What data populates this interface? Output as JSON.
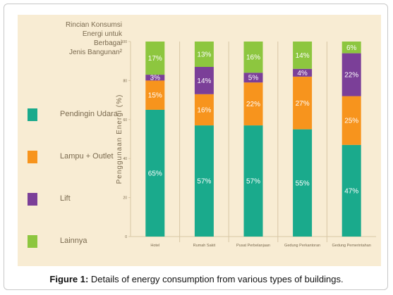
{
  "caption": {
    "label": "Figure 1:",
    "text": " Details of energy consumption from various types of buildings."
  },
  "legend": {
    "title_lines": [
      "Rincian Konsumsi",
      "Energi untuk Berbagai",
      "Jenis Bangunan²"
    ]
  },
  "colors": {
    "panel_bg": "#f8ecd3",
    "axis": "#d8c7a6",
    "text": "#7a6a4f"
  },
  "chart_data": {
    "type": "bar",
    "stacked": true,
    "ylabel": "Penggunaan Energi (%)",
    "ylim": [
      0,
      100
    ],
    "yticks": [
      0,
      20,
      40,
      60,
      80,
      100
    ],
    "categories": [
      "Hotel",
      "Rumah Sakit",
      "Pusat Perbelanjaan",
      "Gedung Perkantoran",
      "Gedung Pemerintahan"
    ],
    "series": [
      {
        "name": "Pendingin Udara",
        "color": "#1aaa8c",
        "values": [
          65,
          57,
          57,
          55,
          47
        ],
        "labels": [
          "65%",
          "57%",
          "57%",
          "55%",
          "47%"
        ]
      },
      {
        "name": "Lampu + Outlet",
        "color": "#f7941d",
        "values": [
          15,
          16,
          22,
          27,
          25
        ],
        "labels": [
          "15%",
          "16%",
          "22%",
          "27%",
          "25%"
        ]
      },
      {
        "name": "Lift",
        "color": "#7b3f98",
        "values": [
          3,
          14,
          5,
          4,
          22
        ],
        "labels": [
          "3%",
          "14%",
          "5%",
          "4%",
          "22%"
        ]
      },
      {
        "name": "Lainnya",
        "color": "#8dc63f",
        "values": [
          17,
          13,
          16,
          14,
          6
        ],
        "labels": [
          "17%",
          "13%",
          "16%",
          "14%",
          "6%"
        ]
      }
    ],
    "legend_position": "left",
    "grid": false
  }
}
